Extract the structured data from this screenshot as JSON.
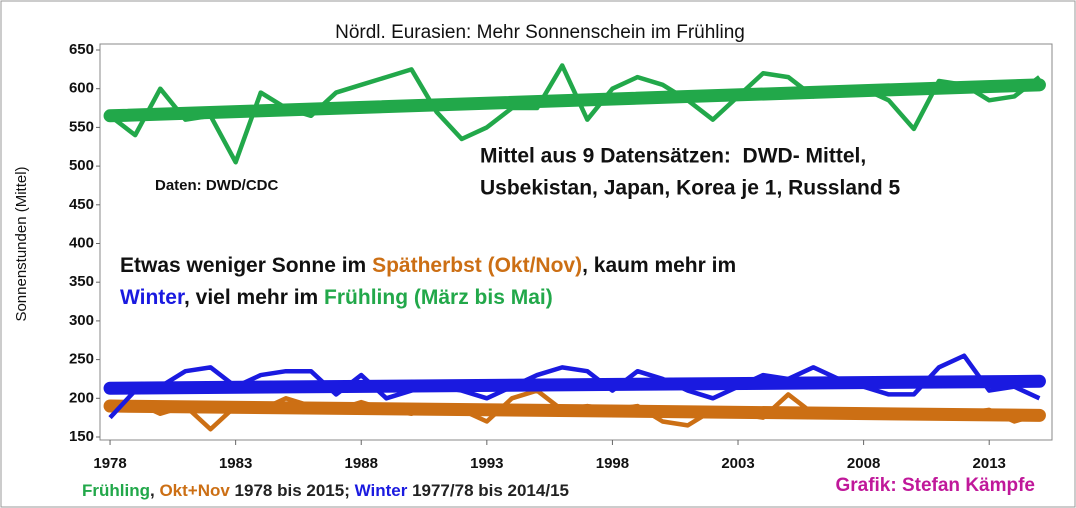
{
  "chart_data": {
    "type": "line",
    "title": "Nördl. Eurasien: Mehr Sonnenschein im Frühling",
    "ylabel": "Sonnenstunden (Mittel)",
    "x": [
      1978,
      1979,
      1980,
      1981,
      1982,
      1983,
      1984,
      1985,
      1986,
      1987,
      1988,
      1989,
      1990,
      1991,
      1992,
      1993,
      1994,
      1995,
      1996,
      1997,
      1998,
      1999,
      2000,
      2001,
      2002,
      2003,
      2004,
      2005,
      2006,
      2007,
      2008,
      2009,
      2010,
      2011,
      2012,
      2013,
      2014,
      2015
    ],
    "xlim": [
      1977.6,
      2015.5
    ],
    "xticks": [
      1978,
      1983,
      1988,
      1993,
      1998,
      2003,
      2008,
      2013
    ],
    "ylim": [
      150,
      650
    ],
    "yticks": [
      150,
      200,
      250,
      300,
      350,
      400,
      450,
      500,
      550,
      600,
      650
    ],
    "series": [
      {
        "color": "#22a84a",
        "trend": [
          565,
          605
        ],
        "values": [
          565,
          540,
          600,
          560,
          565,
          505,
          595,
          575,
          565,
          595,
          605,
          615,
          625,
          570,
          535,
          550,
          575,
          575,
          630,
          560,
          600,
          615,
          605,
          585,
          560,
          590,
          620,
          615,
          590,
          595,
          600,
          585,
          548,
          610,
          605,
          585,
          590,
          615
        ]
      },
      {
        "color": "#cc6f14",
        "trend": [
          190,
          178
        ],
        "values": [
          190,
          195,
          180,
          190,
          160,
          190,
          185,
          200,
          190,
          185,
          195,
          185,
          180,
          190,
          185,
          170,
          200,
          210,
          185,
          190,
          185,
          190,
          170,
          165,
          185,
          180,
          175,
          205,
          180,
          185,
          180,
          175,
          180,
          175,
          180,
          185,
          170,
          180
        ]
      },
      {
        "color": "#1a1ae0",
        "trend": [
          213,
          222
        ],
        "values": [
          175,
          210,
          215,
          235,
          240,
          215,
          230,
          235,
          235,
          205,
          230,
          200,
          210,
          215,
          210,
          200,
          215,
          230,
          240,
          235,
          210,
          235,
          225,
          210,
          200,
          215,
          230,
          225,
          240,
          225,
          215,
          205,
          205,
          240,
          255,
          210,
          215,
          200
        ]
      }
    ],
    "annotations": {
      "source": "Daten: DWD/CDC",
      "box_lines": [
        "Mittel aus 9 Datensätzen:  DWD- Mittel,",
        "Usbekistan, Japan, Korea je 1, Russland 5"
      ],
      "statement_lines": [
        [
          {
            "text": "Etwas weniger Sonne im ",
            "color": "#111111"
          },
          {
            "text": "Spätherbst (Okt/Nov)",
            "color": "#cc6f14"
          },
          {
            "text": ", kaum mehr im",
            "color": "#111111"
          }
        ],
        [
          {
            "text": "Winter",
            "color": "#1a1ae0"
          },
          {
            "text": ", viel mehr im ",
            "color": "#111111"
          },
          {
            "text": "Frühling (März bis Mai)",
            "color": "#22a84a"
          }
        ]
      ],
      "footer": [
        {
          "text": "Frühling",
          "color": "#22a84a"
        },
        {
          "text": ", ",
          "color": "#222222"
        },
        {
          "text": "Okt+Nov",
          "color": "#cc6f14"
        },
        {
          "text": " 1978 bis 2015; ",
          "color": "#222222"
        },
        {
          "text": "Winter",
          "color": "#1a1ae0"
        },
        {
          "text": " 1977/78 bis 2014/15",
          "color": "#222222"
        }
      ],
      "credit": "Grafik: Stefan Kämpfe"
    }
  }
}
